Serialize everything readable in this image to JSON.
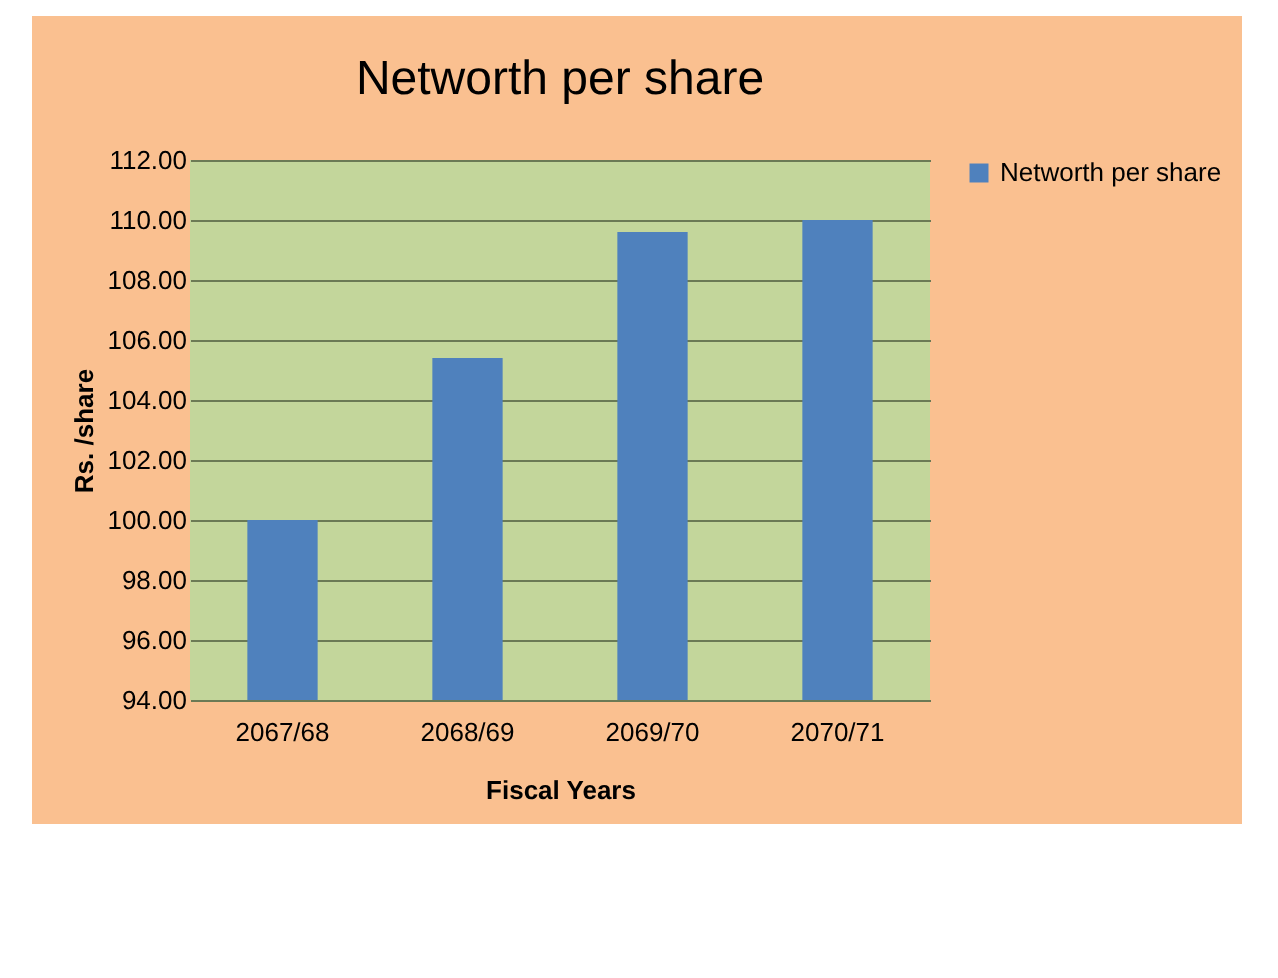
{
  "chart_data": {
    "type": "bar",
    "title": "Networth per share",
    "xlabel": "Fiscal Years",
    "ylabel": "Rs. /share",
    "categories": [
      "2067/68",
      "2068/69",
      "2069/70",
      "2070/71"
    ],
    "series": [
      {
        "name": "Networth per share",
        "color": "#4f81bd",
        "values": [
          100.0,
          105.4,
          109.6,
          110.0
        ]
      }
    ],
    "ylim": [
      94,
      112
    ],
    "yticks": [
      {
        "value": 94,
        "label": "94.00"
      },
      {
        "value": 96,
        "label": "96.00"
      },
      {
        "value": 98,
        "label": "98.00"
      },
      {
        "value": 100,
        "label": "100.00"
      },
      {
        "value": 102,
        "label": "102.00"
      },
      {
        "value": 104,
        "label": "104.00"
      },
      {
        "value": 106,
        "label": "106.00"
      },
      {
        "value": 108,
        "label": "108.00"
      },
      {
        "value": 110,
        "label": "110.00"
      },
      {
        "value": 112,
        "label": "112.00"
      }
    ],
    "grid": "y",
    "legend": "right"
  }
}
